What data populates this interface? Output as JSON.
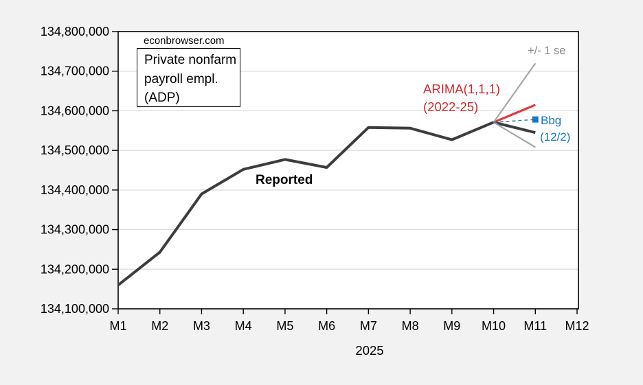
{
  "page": {
    "background_color": "#f2f2f2",
    "plot_background_color": "#ffffff",
    "gridline_color": "#d9d9d9",
    "frame_color": "#000000"
  },
  "chart_data": {
    "type": "line",
    "watermark": "econbrowser.com",
    "title_box_lines": [
      "Private nonfarm",
      "payroll empl.",
      "(ADP)"
    ],
    "x_axis": {
      "categories": [
        "M1",
        "M2",
        "M3",
        "M4",
        "M5",
        "M6",
        "M7",
        "M8",
        "M9",
        "M10",
        "M11",
        "M12"
      ],
      "label": "2025"
    },
    "y_axis": {
      "min": 134100000,
      "max": 134800000,
      "tick_step": 100000,
      "tick_labels": [
        "134,100,000",
        "134,200,000",
        "134,300,000",
        "134,400,000",
        "134,500,000",
        "134,600,000",
        "134,700,000",
        "134,800,000"
      ]
    },
    "grid": true,
    "series": [
      {
        "name": "Reported",
        "color": "#3d3d3d",
        "width": 4,
        "dash": "",
        "marker_on_last": "",
        "months": [
          1,
          2,
          3,
          4,
          5,
          6,
          7,
          8,
          9,
          10,
          11
        ],
        "values": [
          134160000,
          134243000,
          134390000,
          134452000,
          134477000,
          134457000,
          134558000,
          134556000,
          134527000,
          134571000,
          134545000
        ]
      },
      {
        "name": "ARIMA(1,1,1) (2022-25) forecast",
        "color": "#de393b",
        "width": 3.2,
        "dash": "",
        "marker_on_last": "",
        "months": [
          10,
          11
        ],
        "values": [
          134571000,
          134615000
        ]
      },
      {
        "name": "+1 se band",
        "color": "#a6a6a6",
        "width": 2.2,
        "dash": "",
        "marker_on_last": "",
        "months": [
          10,
          11
        ],
        "values": [
          134571000,
          134720000
        ]
      },
      {
        "name": "-1 se band",
        "color": "#a6a6a6",
        "width": 2.2,
        "dash": "",
        "marker_on_last": "",
        "months": [
          10,
          11
        ],
        "values": [
          134571000,
          134508000
        ]
      },
      {
        "name": "Bloomberg consensus (12/2)",
        "color": "#1878be",
        "width": 1.4,
        "dash": "5,4",
        "marker_on_last": "square",
        "months": [
          10,
          11
        ],
        "values": [
          134571000,
          134578000
        ]
      }
    ],
    "annotations": {
      "reported_label": {
        "text": "Reported",
        "color": "#000000"
      },
      "arima_label": {
        "line1": "ARIMA(1,1,1)",
        "line2": "(2022-25)",
        "color": "#d4282c"
      },
      "se_label": {
        "text": "+/- 1 se",
        "color": "#8a8a8a"
      },
      "bbg_label": {
        "line1": "Bbg",
        "line2": "(12/2)",
        "color": "#1878be"
      }
    }
  }
}
